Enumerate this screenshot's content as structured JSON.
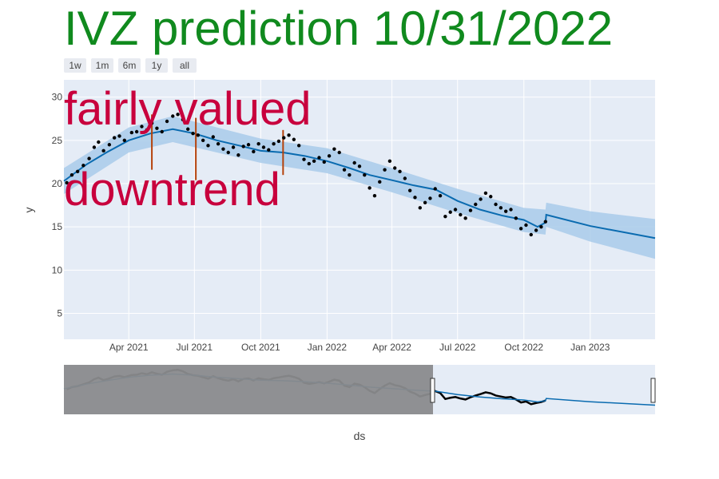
{
  "chart_data": {
    "type": "line",
    "title": "IVZ prediction 10/31/2022",
    "xlabel": "ds",
    "ylabel": "y",
    "x_range": [
      "2021-01-01",
      "2023-04-01"
    ],
    "ylim": [
      2,
      32
    ],
    "y_ticks": [
      5,
      10,
      15,
      20,
      25,
      30
    ],
    "x_ticks": [
      {
        "date": "2021-04-01",
        "label": "Apr 2021"
      },
      {
        "date": "2021-07-01",
        "label": "Jul 2021"
      },
      {
        "date": "2021-10-01",
        "label": "Oct 2021"
      },
      {
        "date": "2022-01-01",
        "label": "Jan 2022"
      },
      {
        "date": "2022-04-01",
        "label": "Apr 2022"
      },
      {
        "date": "2022-07-01",
        "label": "Jul 2022"
      },
      {
        "date": "2022-10-01",
        "label": "Oct 2022"
      },
      {
        "date": "2023-01-01",
        "label": "Jan 2023"
      }
    ],
    "range_buttons": [
      "1w",
      "1m",
      "6m",
      "1y",
      "all"
    ],
    "annotations": [
      "fairly valued",
      "downtrend"
    ],
    "grid": true,
    "colors": {
      "title": "#108a1e",
      "annotation": "#c8003d",
      "trend": "#0a6bb0",
      "band": "#a9cbea",
      "observed": "#000000",
      "changepoint": "#b5420b",
      "plot_bg": "#e5ecf6",
      "slider_shade": "#8a8b8d"
    },
    "series": [
      {
        "name": "trend",
        "kind": "line",
        "points": [
          [
            "2021-01-01",
            20.3
          ],
          [
            "2021-02-01",
            22.2
          ],
          [
            "2021-03-01",
            23.6
          ],
          [
            "2021-04-01",
            25.0
          ],
          [
            "2021-05-01",
            25.8
          ],
          [
            "2021-06-01",
            26.3
          ],
          [
            "2021-07-01",
            25.8
          ],
          [
            "2021-08-01",
            25.0
          ],
          [
            "2021-09-01",
            24.4
          ],
          [
            "2021-10-01",
            23.8
          ],
          [
            "2021-11-01",
            23.6
          ],
          [
            "2021-12-01",
            23.2
          ],
          [
            "2022-01-01",
            22.6
          ],
          [
            "2022-02-01",
            21.8
          ],
          [
            "2022-03-01",
            21.0
          ],
          [
            "2022-04-01",
            20.4
          ],
          [
            "2022-05-01",
            19.8
          ],
          [
            "2022-06-01",
            19.3
          ],
          [
            "2022-07-01",
            18.0
          ],
          [
            "2022-08-01",
            17.0
          ],
          [
            "2022-09-01",
            16.3
          ],
          [
            "2022-10-01",
            15.8
          ],
          [
            "2022-10-20",
            15.0
          ],
          [
            "2022-10-31",
            15.5
          ],
          [
            "2022-11-01",
            16.4
          ],
          [
            "2023-01-01",
            15.1
          ],
          [
            "2023-04-01",
            13.7
          ]
        ]
      },
      {
        "name": "uncertainty",
        "kind": "band",
        "points": [
          [
            "2021-01-01",
            18.8,
            21.8
          ],
          [
            "2021-04-01",
            23.6,
            26.5
          ],
          [
            "2021-06-01",
            24.8,
            27.8
          ],
          [
            "2021-10-01",
            22.4,
            25.2
          ],
          [
            "2022-01-01",
            21.2,
            24.1
          ],
          [
            "2022-04-01",
            19.0,
            21.8
          ],
          [
            "2022-07-01",
            16.6,
            19.4
          ],
          [
            "2022-10-01",
            14.4,
            17.2
          ],
          [
            "2022-10-31",
            14.1,
            17.0
          ],
          [
            "2022-11-01",
            15.0,
            17.8
          ],
          [
            "2023-01-01",
            13.3,
            16.8
          ],
          [
            "2023-04-01",
            11.3,
            15.9
          ]
        ]
      },
      {
        "name": "observed",
        "kind": "markers",
        "points": [
          [
            "2021-01-05",
            20.1
          ],
          [
            "2021-01-12",
            21.0
          ],
          [
            "2021-01-20",
            21.4
          ],
          [
            "2021-01-28",
            22.1
          ],
          [
            "2021-02-05",
            22.9
          ],
          [
            "2021-02-12",
            24.2
          ],
          [
            "2021-02-18",
            24.8
          ],
          [
            "2021-02-25",
            23.8
          ],
          [
            "2021-03-05",
            24.5
          ],
          [
            "2021-03-12",
            25.3
          ],
          [
            "2021-03-19",
            25.5
          ],
          [
            "2021-03-26",
            25.0
          ],
          [
            "2021-04-05",
            25.9
          ],
          [
            "2021-04-12",
            26.0
          ],
          [
            "2021-04-19",
            26.6
          ],
          [
            "2021-04-26",
            26.2
          ],
          [
            "2021-05-03",
            27.0
          ],
          [
            "2021-05-10",
            26.4
          ],
          [
            "2021-05-17",
            26.0
          ],
          [
            "2021-05-24",
            27.2
          ],
          [
            "2021-06-01",
            27.8
          ],
          [
            "2021-06-08",
            28.0
          ],
          [
            "2021-06-15",
            27.4
          ],
          [
            "2021-06-22",
            26.3
          ],
          [
            "2021-06-29",
            25.8
          ],
          [
            "2021-07-06",
            25.6
          ],
          [
            "2021-07-13",
            25.0
          ],
          [
            "2021-07-20",
            24.4
          ],
          [
            "2021-07-27",
            25.4
          ],
          [
            "2021-08-03",
            24.6
          ],
          [
            "2021-08-10",
            24.0
          ],
          [
            "2021-08-17",
            23.6
          ],
          [
            "2021-08-24",
            24.2
          ],
          [
            "2021-08-31",
            23.3
          ],
          [
            "2021-09-07",
            24.3
          ],
          [
            "2021-09-14",
            24.5
          ],
          [
            "2021-09-21",
            23.7
          ],
          [
            "2021-09-28",
            24.6
          ],
          [
            "2021-10-05",
            24.2
          ],
          [
            "2021-10-12",
            23.9
          ],
          [
            "2021-10-19",
            24.6
          ],
          [
            "2021-10-26",
            24.9
          ],
          [
            "2021-11-02",
            25.3
          ],
          [
            "2021-11-09",
            25.6
          ],
          [
            "2021-11-16",
            25.1
          ],
          [
            "2021-11-23",
            24.4
          ],
          [
            "2021-11-30",
            22.8
          ],
          [
            "2021-12-07",
            22.3
          ],
          [
            "2021-12-14",
            22.6
          ],
          [
            "2021-12-21",
            23.0
          ],
          [
            "2021-12-28",
            22.5
          ],
          [
            "2022-01-04",
            23.2
          ],
          [
            "2022-01-11",
            24.0
          ],
          [
            "2022-01-18",
            23.6
          ],
          [
            "2022-01-25",
            21.6
          ],
          [
            "2022-02-01",
            21.0
          ],
          [
            "2022-02-08",
            22.4
          ],
          [
            "2022-02-15",
            22.0
          ],
          [
            "2022-02-22",
            21.0
          ],
          [
            "2022-03-01",
            19.5
          ],
          [
            "2022-03-08",
            18.6
          ],
          [
            "2022-03-15",
            20.2
          ],
          [
            "2022-03-22",
            21.6
          ],
          [
            "2022-03-29",
            22.6
          ],
          [
            "2022-04-05",
            21.8
          ],
          [
            "2022-04-12",
            21.4
          ],
          [
            "2022-04-19",
            20.6
          ],
          [
            "2022-04-26",
            19.2
          ],
          [
            "2022-05-03",
            18.4
          ],
          [
            "2022-05-10",
            17.2
          ],
          [
            "2022-05-17",
            17.8
          ],
          [
            "2022-05-24",
            18.3
          ],
          [
            "2022-05-31",
            19.4
          ],
          [
            "2022-06-07",
            18.6
          ],
          [
            "2022-06-14",
            16.2
          ],
          [
            "2022-06-21",
            16.7
          ],
          [
            "2022-06-28",
            17.0
          ],
          [
            "2022-07-05",
            16.4
          ],
          [
            "2022-07-12",
            16.0
          ],
          [
            "2022-07-19",
            16.9
          ],
          [
            "2022-07-26",
            17.6
          ],
          [
            "2022-08-02",
            18.2
          ],
          [
            "2022-08-09",
            18.9
          ],
          [
            "2022-08-16",
            18.5
          ],
          [
            "2022-08-23",
            17.6
          ],
          [
            "2022-08-30",
            17.2
          ],
          [
            "2022-09-06",
            16.8
          ],
          [
            "2022-09-13",
            17.0
          ],
          [
            "2022-09-20",
            16.0
          ],
          [
            "2022-09-27",
            14.8
          ],
          [
            "2022-10-04",
            15.2
          ],
          [
            "2022-10-11",
            14.1
          ],
          [
            "2022-10-18",
            14.6
          ],
          [
            "2022-10-25",
            15.0
          ],
          [
            "2022-10-31",
            15.6
          ]
        ]
      },
      {
        "name": "changepoints",
        "kind": "vertical-lines",
        "points": [
          [
            "2021-05-03",
            21.6,
            28.0
          ],
          [
            "2021-07-03",
            20.4,
            27.6
          ],
          [
            "2021-11-01",
            21.0,
            26.2
          ]
        ]
      }
    ]
  }
}
